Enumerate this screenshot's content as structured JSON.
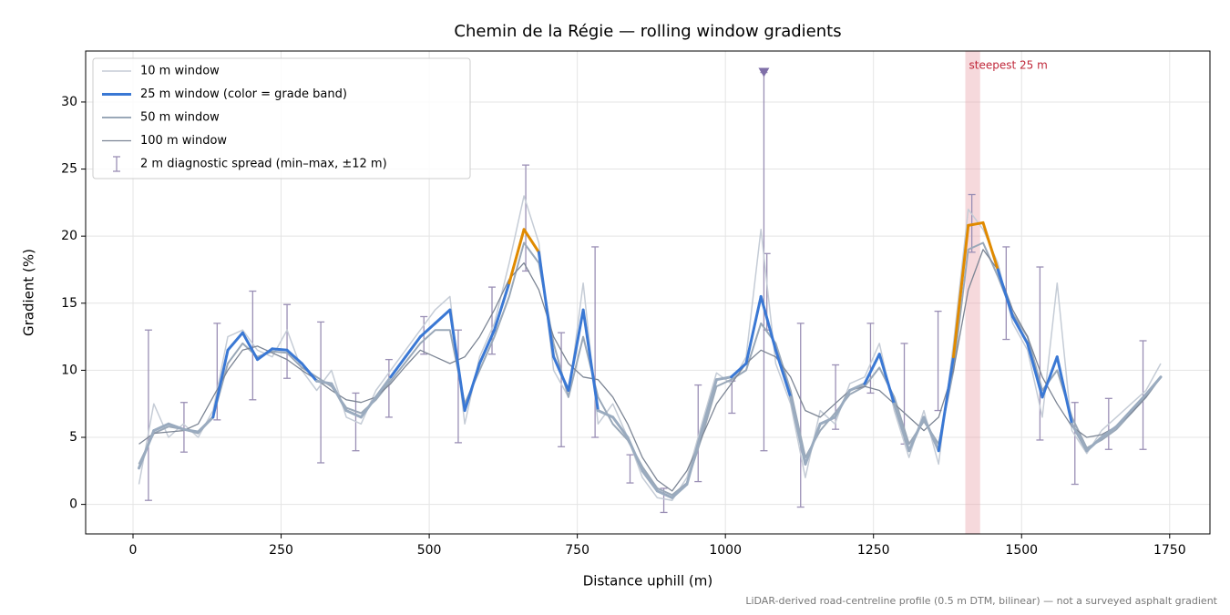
{
  "chart_data": {
    "type": "line",
    "title": "Chemin de la Régie — rolling window gradients",
    "xlabel": "Distance uphill (m)",
    "ylabel": "Gradient (%)",
    "footnote": "LiDAR-derived road-centreline profile (0.5 m DTM, bilinear) — not a surveyed asphalt gradient",
    "xlim": [
      -80,
      1818
    ],
    "ylim": [
      -2.2,
      33.8
    ],
    "xticks": [
      0,
      250,
      500,
      750,
      1000,
      1250,
      1500,
      1750
    ],
    "yticks": [
      0,
      5,
      10,
      15,
      20,
      25,
      30
    ],
    "grid": true,
    "legend": "upper left",
    "x": [
      10,
      35,
      60,
      85,
      110,
      135,
      160,
      185,
      210,
      235,
      260,
      285,
      310,
      335,
      360,
      385,
      410,
      435,
      460,
      485,
      510,
      535,
      560,
      585,
      610,
      635,
      660,
      685,
      710,
      735,
      760,
      785,
      810,
      835,
      860,
      885,
      910,
      935,
      960,
      985,
      1010,
      1035,
      1060,
      1085,
      1110,
      1135,
      1160,
      1185,
      1210,
      1235,
      1260,
      1285,
      1310,
      1335,
      1360,
      1385,
      1410,
      1435,
      1460,
      1485,
      1510,
      1535,
      1560,
      1585,
      1610,
      1635,
      1660,
      1685,
      1710,
      1735
    ],
    "series": [
      {
        "name": "10 m window",
        "color": "#c5ccd6",
        "width": 1.5,
        "values": [
          1.5,
          7.5,
          5.0,
          6.0,
          5.0,
          7.0,
          12.5,
          13.0,
          11.5,
          11.0,
          13.0,
          10.0,
          8.5,
          10.0,
          6.5,
          6.0,
          8.5,
          10.0,
          11.5,
          13.0,
          14.5,
          15.5,
          6.0,
          11.0,
          13.5,
          18.0,
          23.0,
          19.5,
          10.0,
          8.0,
          16.5,
          6.0,
          7.5,
          5.0,
          2.0,
          0.5,
          0.3,
          2.0,
          6.0,
          9.8,
          9.0,
          11.0,
          20.5,
          10.5,
          7.5,
          2.0,
          7.0,
          6.0,
          9.0,
          9.5,
          12.0,
          7.0,
          3.5,
          7.0,
          3.0,
          12.0,
          22.0,
          20.5,
          18.0,
          13.5,
          11.5,
          6.5,
          16.5,
          5.5,
          3.8,
          5.5,
          6.5,
          7.5,
          8.5,
          10.5
        ]
      },
      {
        "name": "25 m window (color = grade band)",
        "color": "#3a78d4",
        "width": 3,
        "grade_band_edges": [
          10,
          20
        ],
        "grade_band_colors": [
          "#9aabbf",
          "#3a78d4",
          "#e08a00"
        ],
        "values": [
          2.7,
          5.5,
          6.0,
          5.6,
          5.4,
          6.5,
          11.5,
          12.8,
          10.8,
          11.6,
          11.5,
          10.5,
          9.2,
          9.0,
          7.0,
          6.5,
          8.0,
          9.5,
          11.0,
          12.5,
          13.5,
          14.5,
          7.0,
          10.5,
          13.0,
          16.5,
          20.5,
          18.8,
          11.0,
          8.5,
          14.5,
          7.0,
          6.5,
          5.0,
          2.5,
          1.0,
          0.5,
          1.5,
          5.5,
          9.3,
          9.5,
          10.5,
          15.5,
          11.5,
          8.0,
          3.0,
          6.0,
          6.5,
          8.5,
          9.0,
          11.2,
          7.5,
          4.0,
          6.5,
          4.0,
          11.0,
          20.8,
          21.0,
          17.5,
          14.0,
          12.0,
          8.0,
          11.0,
          6.0,
          4.0,
          5.0,
          5.8,
          7.0,
          8.2,
          9.5
        ]
      },
      {
        "name": "50 m window",
        "color": "#9aa8b8",
        "width": 2,
        "values": [
          3.0,
          5.3,
          5.8,
          5.6,
          5.3,
          6.5,
          10.5,
          12.0,
          11.0,
          11.4,
          11.3,
          10.2,
          9.5,
          8.8,
          7.2,
          6.8,
          7.8,
          9.2,
          10.6,
          12.0,
          13.0,
          13.0,
          7.5,
          10.0,
          12.5,
          15.5,
          19.5,
          18.0,
          12.0,
          8.0,
          12.5,
          8.0,
          6.0,
          4.8,
          2.8,
          1.2,
          0.7,
          1.6,
          5.0,
          8.8,
          9.3,
          10.0,
          13.5,
          12.0,
          8.5,
          3.5,
          5.5,
          6.8,
          8.2,
          8.8,
          10.2,
          8.0,
          4.5,
          6.2,
          4.5,
          10.0,
          19.0,
          19.5,
          17.0,
          14.2,
          12.5,
          8.5,
          10.0,
          6.5,
          4.2,
          4.8,
          5.6,
          6.8,
          8.0,
          9.5
        ]
      },
      {
        "name": "100 m window",
        "color": "#7c8594",
        "width": 1.3,
        "values": [
          4.5,
          5.3,
          5.4,
          5.5,
          6.0,
          8.0,
          10.0,
          11.5,
          11.8,
          11.3,
          10.8,
          10.0,
          9.3,
          8.5,
          7.8,
          7.6,
          8.0,
          9.0,
          10.3,
          11.5,
          11.0,
          10.5,
          11.0,
          12.5,
          14.5,
          16.8,
          18.0,
          16.0,
          12.5,
          10.5,
          9.5,
          9.3,
          8.0,
          6.0,
          3.5,
          1.8,
          1.0,
          2.5,
          5.0,
          7.5,
          9.0,
          10.5,
          11.5,
          11.0,
          9.5,
          7.0,
          6.5,
          7.5,
          8.5,
          8.8,
          8.5,
          7.5,
          6.5,
          5.5,
          6.5,
          10.0,
          16.0,
          19.0,
          17.5,
          14.5,
          12.5,
          9.5,
          7.5,
          5.8,
          5.0,
          5.2,
          5.8,
          6.8,
          8.0,
          9.5
        ]
      }
    ],
    "errorbars": {
      "name": "2 m diagnostic spread (min–max, ±12 m)",
      "color": "#9a8fb5",
      "x": [
        26,
        86,
        142,
        202,
        260,
        317,
        376,
        432,
        491,
        549,
        606,
        663,
        723,
        780,
        839,
        896,
        954,
        1011,
        1065,
        1070,
        1127,
        1186,
        1245,
        1302,
        1359,
        1416,
        1474,
        1531,
        1590,
        1647,
        1705
      ],
      "low": [
        0.3,
        3.9,
        6.3,
        7.8,
        9.4,
        3.1,
        4.0,
        6.5,
        11.2,
        4.6,
        11.2,
        17.4,
        4.3,
        5.0,
        1.6,
        -0.6,
        1.7,
        6.8,
        4.0,
        13.0,
        -0.2,
        5.6,
        8.3,
        4.5,
        7.0,
        18.8,
        12.3,
        4.8,
        1.5,
        4.1,
        4.1
      ],
      "high": [
        13.0,
        7.6,
        13.5,
        15.9,
        14.9,
        13.6,
        8.3,
        10.8,
        14.0,
        13.0,
        16.2,
        25.3,
        12.8,
        19.2,
        3.7,
        1.2,
        8.9,
        9.2,
        32.2,
        18.7,
        13.5,
        10.4,
        13.5,
        12.0,
        14.4,
        23.1,
        19.2,
        17.7,
        7.6,
        7.9,
        12.2
      ],
      "clipped_index": 18,
      "clipped_color": "#7f6fa8"
    },
    "highlight": {
      "from": 1405,
      "to": 1430,
      "label": "steepest 25 m",
      "color": "#e8a0a8",
      "label_color": "#c0283a"
    }
  }
}
